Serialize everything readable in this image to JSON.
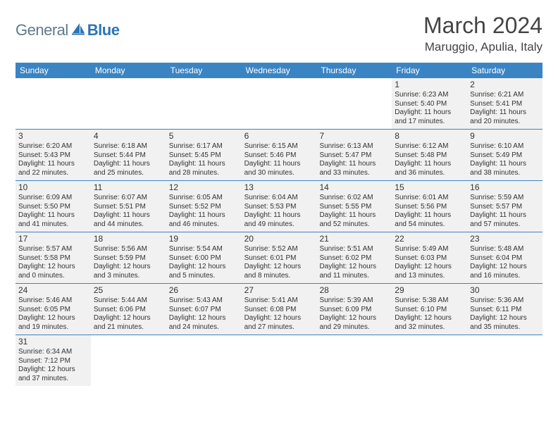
{
  "brand": {
    "part1": "General",
    "part2": "Blue",
    "part1_color": "#5d7a8c",
    "part2_color": "#2d75b5"
  },
  "title": "March 2024",
  "location": "Maruggio, Apulia, Italy",
  "colors": {
    "header_bar": "#3a84c4",
    "row_divider": "#3a84c4",
    "day_bg": "#f1f1f1",
    "blank_bg": "#ffffff",
    "text": "#333333"
  },
  "typography": {
    "title_fontsize": 32,
    "location_fontsize": 17,
    "dow_fontsize": 12,
    "daynum_fontsize": 12,
    "body_fontsize": 10
  },
  "dow": [
    "Sunday",
    "Monday",
    "Tuesday",
    "Wednesday",
    "Thursday",
    "Friday",
    "Saturday"
  ],
  "weeks": [
    [
      {
        "blank": true
      },
      {
        "blank": true
      },
      {
        "blank": true
      },
      {
        "blank": true
      },
      {
        "blank": true
      },
      {
        "n": "1",
        "sunrise": "Sunrise: 6:23 AM",
        "sunset": "Sunset: 5:40 PM",
        "dl1": "Daylight: 11 hours",
        "dl2": "and 17 minutes."
      },
      {
        "n": "2",
        "sunrise": "Sunrise: 6:21 AM",
        "sunset": "Sunset: 5:41 PM",
        "dl1": "Daylight: 11 hours",
        "dl2": "and 20 minutes."
      }
    ],
    [
      {
        "n": "3",
        "sunrise": "Sunrise: 6:20 AM",
        "sunset": "Sunset: 5:43 PM",
        "dl1": "Daylight: 11 hours",
        "dl2": "and 22 minutes."
      },
      {
        "n": "4",
        "sunrise": "Sunrise: 6:18 AM",
        "sunset": "Sunset: 5:44 PM",
        "dl1": "Daylight: 11 hours",
        "dl2": "and 25 minutes."
      },
      {
        "n": "5",
        "sunrise": "Sunrise: 6:17 AM",
        "sunset": "Sunset: 5:45 PM",
        "dl1": "Daylight: 11 hours",
        "dl2": "and 28 minutes."
      },
      {
        "n": "6",
        "sunrise": "Sunrise: 6:15 AM",
        "sunset": "Sunset: 5:46 PM",
        "dl1": "Daylight: 11 hours",
        "dl2": "and 30 minutes."
      },
      {
        "n": "7",
        "sunrise": "Sunrise: 6:13 AM",
        "sunset": "Sunset: 5:47 PM",
        "dl1": "Daylight: 11 hours",
        "dl2": "and 33 minutes."
      },
      {
        "n": "8",
        "sunrise": "Sunrise: 6:12 AM",
        "sunset": "Sunset: 5:48 PM",
        "dl1": "Daylight: 11 hours",
        "dl2": "and 36 minutes."
      },
      {
        "n": "9",
        "sunrise": "Sunrise: 6:10 AM",
        "sunset": "Sunset: 5:49 PM",
        "dl1": "Daylight: 11 hours",
        "dl2": "and 38 minutes."
      }
    ],
    [
      {
        "n": "10",
        "sunrise": "Sunrise: 6:09 AM",
        "sunset": "Sunset: 5:50 PM",
        "dl1": "Daylight: 11 hours",
        "dl2": "and 41 minutes."
      },
      {
        "n": "11",
        "sunrise": "Sunrise: 6:07 AM",
        "sunset": "Sunset: 5:51 PM",
        "dl1": "Daylight: 11 hours",
        "dl2": "and 44 minutes."
      },
      {
        "n": "12",
        "sunrise": "Sunrise: 6:05 AM",
        "sunset": "Sunset: 5:52 PM",
        "dl1": "Daylight: 11 hours",
        "dl2": "and 46 minutes."
      },
      {
        "n": "13",
        "sunrise": "Sunrise: 6:04 AM",
        "sunset": "Sunset: 5:53 PM",
        "dl1": "Daylight: 11 hours",
        "dl2": "and 49 minutes."
      },
      {
        "n": "14",
        "sunrise": "Sunrise: 6:02 AM",
        "sunset": "Sunset: 5:55 PM",
        "dl1": "Daylight: 11 hours",
        "dl2": "and 52 minutes."
      },
      {
        "n": "15",
        "sunrise": "Sunrise: 6:01 AM",
        "sunset": "Sunset: 5:56 PM",
        "dl1": "Daylight: 11 hours",
        "dl2": "and 54 minutes."
      },
      {
        "n": "16",
        "sunrise": "Sunrise: 5:59 AM",
        "sunset": "Sunset: 5:57 PM",
        "dl1": "Daylight: 11 hours",
        "dl2": "and 57 minutes."
      }
    ],
    [
      {
        "n": "17",
        "sunrise": "Sunrise: 5:57 AM",
        "sunset": "Sunset: 5:58 PM",
        "dl1": "Daylight: 12 hours",
        "dl2": "and 0 minutes."
      },
      {
        "n": "18",
        "sunrise": "Sunrise: 5:56 AM",
        "sunset": "Sunset: 5:59 PM",
        "dl1": "Daylight: 12 hours",
        "dl2": "and 3 minutes."
      },
      {
        "n": "19",
        "sunrise": "Sunrise: 5:54 AM",
        "sunset": "Sunset: 6:00 PM",
        "dl1": "Daylight: 12 hours",
        "dl2": "and 5 minutes."
      },
      {
        "n": "20",
        "sunrise": "Sunrise: 5:52 AM",
        "sunset": "Sunset: 6:01 PM",
        "dl1": "Daylight: 12 hours",
        "dl2": "and 8 minutes."
      },
      {
        "n": "21",
        "sunrise": "Sunrise: 5:51 AM",
        "sunset": "Sunset: 6:02 PM",
        "dl1": "Daylight: 12 hours",
        "dl2": "and 11 minutes."
      },
      {
        "n": "22",
        "sunrise": "Sunrise: 5:49 AM",
        "sunset": "Sunset: 6:03 PM",
        "dl1": "Daylight: 12 hours",
        "dl2": "and 13 minutes."
      },
      {
        "n": "23",
        "sunrise": "Sunrise: 5:48 AM",
        "sunset": "Sunset: 6:04 PM",
        "dl1": "Daylight: 12 hours",
        "dl2": "and 16 minutes."
      }
    ],
    [
      {
        "n": "24",
        "sunrise": "Sunrise: 5:46 AM",
        "sunset": "Sunset: 6:05 PM",
        "dl1": "Daylight: 12 hours",
        "dl2": "and 19 minutes."
      },
      {
        "n": "25",
        "sunrise": "Sunrise: 5:44 AM",
        "sunset": "Sunset: 6:06 PM",
        "dl1": "Daylight: 12 hours",
        "dl2": "and 21 minutes."
      },
      {
        "n": "26",
        "sunrise": "Sunrise: 5:43 AM",
        "sunset": "Sunset: 6:07 PM",
        "dl1": "Daylight: 12 hours",
        "dl2": "and 24 minutes."
      },
      {
        "n": "27",
        "sunrise": "Sunrise: 5:41 AM",
        "sunset": "Sunset: 6:08 PM",
        "dl1": "Daylight: 12 hours",
        "dl2": "and 27 minutes."
      },
      {
        "n": "28",
        "sunrise": "Sunrise: 5:39 AM",
        "sunset": "Sunset: 6:09 PM",
        "dl1": "Daylight: 12 hours",
        "dl2": "and 29 minutes."
      },
      {
        "n": "29",
        "sunrise": "Sunrise: 5:38 AM",
        "sunset": "Sunset: 6:10 PM",
        "dl1": "Daylight: 12 hours",
        "dl2": "and 32 minutes."
      },
      {
        "n": "30",
        "sunrise": "Sunrise: 5:36 AM",
        "sunset": "Sunset: 6:11 PM",
        "dl1": "Daylight: 12 hours",
        "dl2": "and 35 minutes."
      }
    ],
    [
      {
        "n": "31",
        "sunrise": "Sunrise: 6:34 AM",
        "sunset": "Sunset: 7:12 PM",
        "dl1": "Daylight: 12 hours",
        "dl2": "and 37 minutes."
      },
      {
        "blank": true
      },
      {
        "blank": true
      },
      {
        "blank": true
      },
      {
        "blank": true
      },
      {
        "blank": true
      },
      {
        "blank": true
      }
    ]
  ]
}
